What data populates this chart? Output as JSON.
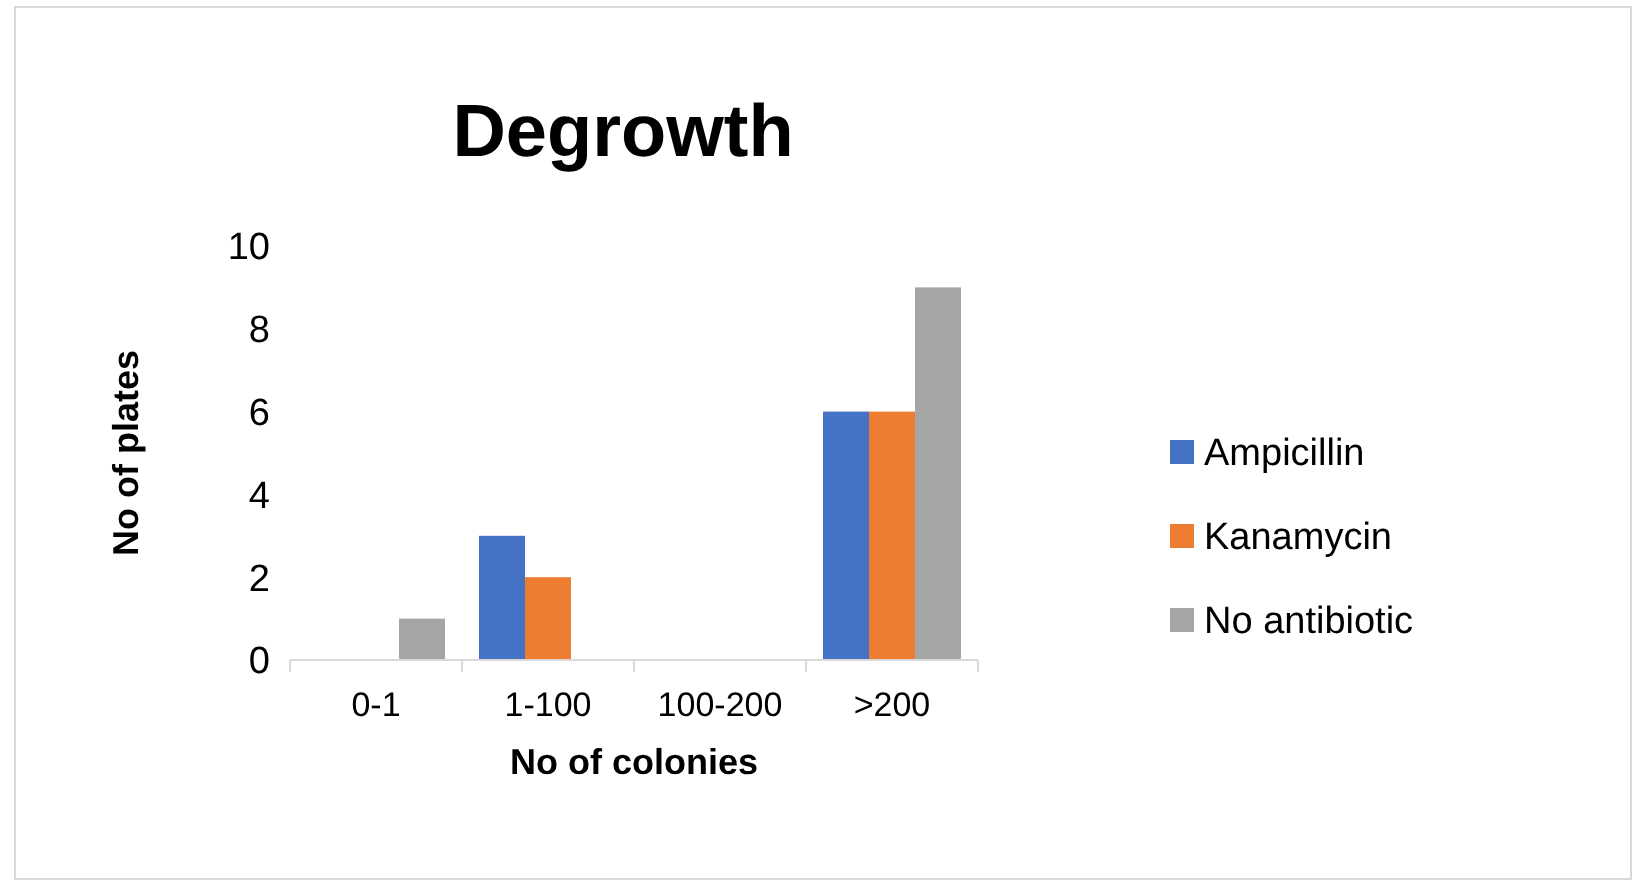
{
  "chart_data": {
    "type": "bar",
    "title": "Degrowth",
    "xlabel": "No of colonies",
    "ylabel": "No of plates",
    "categories": [
      "0-1",
      "1-100",
      "100-200",
      ">200"
    ],
    "series": [
      {
        "name": "Ampicillin",
        "color": "#4472c4",
        "values": [
          0,
          3,
          0,
          6
        ]
      },
      {
        "name": "Kanamycin",
        "color": "#ed7d31",
        "values": [
          0,
          2,
          0,
          6
        ]
      },
      {
        "name": "No antibiotic",
        "color": "#a5a5a5",
        "values": [
          1,
          0,
          0,
          9
        ]
      }
    ],
    "ylim": [
      0,
      10
    ],
    "yticks": [
      0,
      2,
      4,
      6,
      8,
      10
    ],
    "grid": false,
    "legend": "right"
  }
}
